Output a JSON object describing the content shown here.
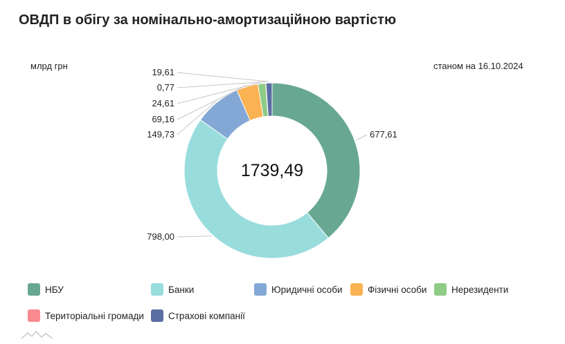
{
  "header": {
    "title": "ОВДП в обігу за номінально-амортизаційною вартістю",
    "unit": "млрд грн",
    "date": "станом на 16.10.2024"
  },
  "chart_data": {
    "type": "pie",
    "donut": true,
    "center_label": "1739,49",
    "categories": [
      "НБУ",
      "Банки",
      "Юридичні особи",
      "Фізичні особи",
      "Нерезиденти",
      "Територіальні громади",
      "Страхові компанії"
    ],
    "values": [
      677.61,
      798.0,
      149.73,
      69.16,
      24.61,
      0.77,
      19.61
    ],
    "value_labels": [
      "677,61",
      "798,00",
      "149,73",
      "69,16",
      "24,61",
      "0,77",
      "19,61"
    ],
    "colors": [
      "#68a893",
      "#99dcdc",
      "#84a8d6",
      "#fbb252",
      "#8ecb86",
      "#f98a8f",
      "#5a6ea3"
    ],
    "legend_position": "bottom"
  }
}
